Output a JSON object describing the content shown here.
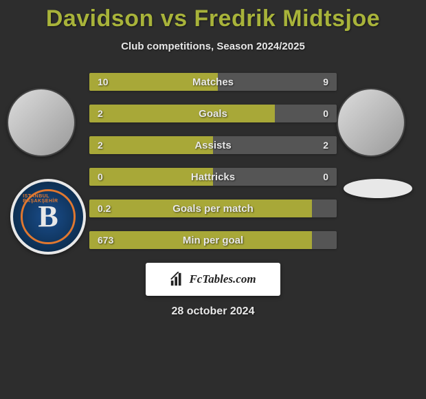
{
  "title": "Davidson vs Fredrik Midtsjoe",
  "subtitle": "Club competitions, Season 2024/2025",
  "colors": {
    "accent": "#a8b33a",
    "bar_left": "#a8a838",
    "bar_right": "#555555",
    "background": "#2d2d2d",
    "text": "#e8e8e8"
  },
  "player_left": {
    "name": "Davidson"
  },
  "player_right": {
    "name": "Fredrik Midtsjoe"
  },
  "club_left": {
    "letter": "B",
    "arc_text": "ISTANBUL BAŞAKŞEHİR"
  },
  "stats": [
    {
      "label": "Matches",
      "left_value": "10",
      "right_value": "9",
      "left_pct": 52,
      "right_pct": 48
    },
    {
      "label": "Goals",
      "left_value": "2",
      "right_value": "0",
      "left_pct": 75,
      "right_pct": 25
    },
    {
      "label": "Assists",
      "left_value": "2",
      "right_value": "2",
      "left_pct": 50,
      "right_pct": 50
    },
    {
      "label": "Hattricks",
      "left_value": "0",
      "right_value": "0",
      "left_pct": 50,
      "right_pct": 50
    },
    {
      "label": "Goals per match",
      "left_value": "0.2",
      "right_value": "",
      "left_pct": 90,
      "right_pct": 10
    },
    {
      "label": "Min per goal",
      "left_value": "673",
      "right_value": "",
      "left_pct": 90,
      "right_pct": 10
    }
  ],
  "logo_text": "FcTables.com",
  "date": "28 october 2024"
}
